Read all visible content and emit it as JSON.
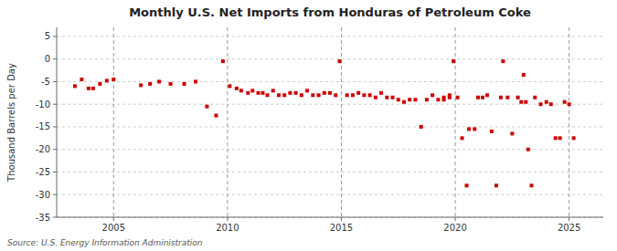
{
  "chart_data": {
    "type": "scatter",
    "title": "Monthly U.S. Net Imports from Honduras of Petroleum Coke",
    "y_label": "Thousand Barrels per Day",
    "annotations": [
      "Source: U.S. Energy Information Administration"
    ],
    "color": "#cc0000",
    "marker": "square",
    "grid": true,
    "xlim": [
      2002.5,
      2026.5
    ],
    "xticks": [
      2005,
      2010,
      2015,
      2020,
      2025
    ],
    "ylim": [
      -35,
      7
    ],
    "yticks": [
      5,
      0,
      -5,
      -10,
      -15,
      -20,
      -25,
      -30,
      -35
    ],
    "x": [
      2003.3,
      2003.6,
      2003.9,
      2004.1,
      2004.4,
      2004.7,
      2005.0,
      2006.2,
      2006.6,
      2007.0,
      2007.5,
      2008.1,
      2008.6,
      2009.1,
      2009.5,
      2009.8,
      2010.1,
      2010.4,
      2010.6,
      2010.9,
      2011.1,
      2011.35,
      2011.55,
      2011.75,
      2012.0,
      2012.25,
      2012.5,
      2012.75,
      2013.0,
      2013.25,
      2013.5,
      2013.75,
      2014.0,
      2014.25,
      2014.5,
      2014.75,
      2014.92,
      2015.25,
      2015.5,
      2015.75,
      2016.0,
      2016.25,
      2016.5,
      2016.75,
      2017.0,
      2017.25,
      2017.5,
      2017.75,
      2018.0,
      2018.25,
      2018.5,
      2018.75,
      2019.0,
      2019.25,
      2019.5,
      2019.75,
      2019.92,
      2020.1,
      2020.3,
      2020.6,
      2020.85,
      2021.0,
      2021.2,
      2021.4,
      2021.6,
      2021.8,
      2022.0,
      2022.1,
      2022.3,
      2022.5,
      2022.75,
      2022.9,
      2023.1,
      2023.2,
      2023.35,
      2023.0,
      2023.5,
      2023.75,
      2024.0,
      2024.2,
      2024.4,
      2024.6,
      2024.8,
      2025.0,
      2025.2,
      2019.5,
      2019.75,
      2020.5
    ],
    "values": [
      -6.0,
      -4.5,
      -6.5,
      -6.5,
      -5.5,
      -4.8,
      -4.5,
      -5.8,
      -5.5,
      -5.0,
      -5.5,
      -5.5,
      -5.0,
      -10.5,
      -12.5,
      -0.5,
      -6.0,
      -6.5,
      -7.0,
      -7.5,
      -7.0,
      -7.5,
      -7.5,
      -8.0,
      -7.0,
      -8.0,
      -8.0,
      -7.5,
      -7.5,
      -8.0,
      -7.0,
      -8.0,
      -8.0,
      -7.5,
      -7.5,
      -8.0,
      -0.5,
      -8.0,
      -8.0,
      -7.5,
      -8.0,
      -8.0,
      -8.5,
      -7.5,
      -8.5,
      -8.5,
      -9.0,
      -9.5,
      -9.0,
      -9.0,
      -15.0,
      -9.0,
      -8.0,
      -9.0,
      -8.5,
      -8.0,
      -0.5,
      -8.5,
      -17.5,
      -15.5,
      -15.5,
      -8.5,
      -8.5,
      -8.0,
      -16.0,
      -28.0,
      -8.5,
      -0.5,
      -8.5,
      -16.5,
      -8.5,
      -9.5,
      -9.5,
      -20.0,
      -28.0,
      -3.5,
      -8.5,
      -10.0,
      -9.5,
      -10.0,
      -17.5,
      -17.5,
      -9.5,
      -10.0,
      -17.5,
      -9.0,
      -8.5,
      -28.0
    ]
  }
}
